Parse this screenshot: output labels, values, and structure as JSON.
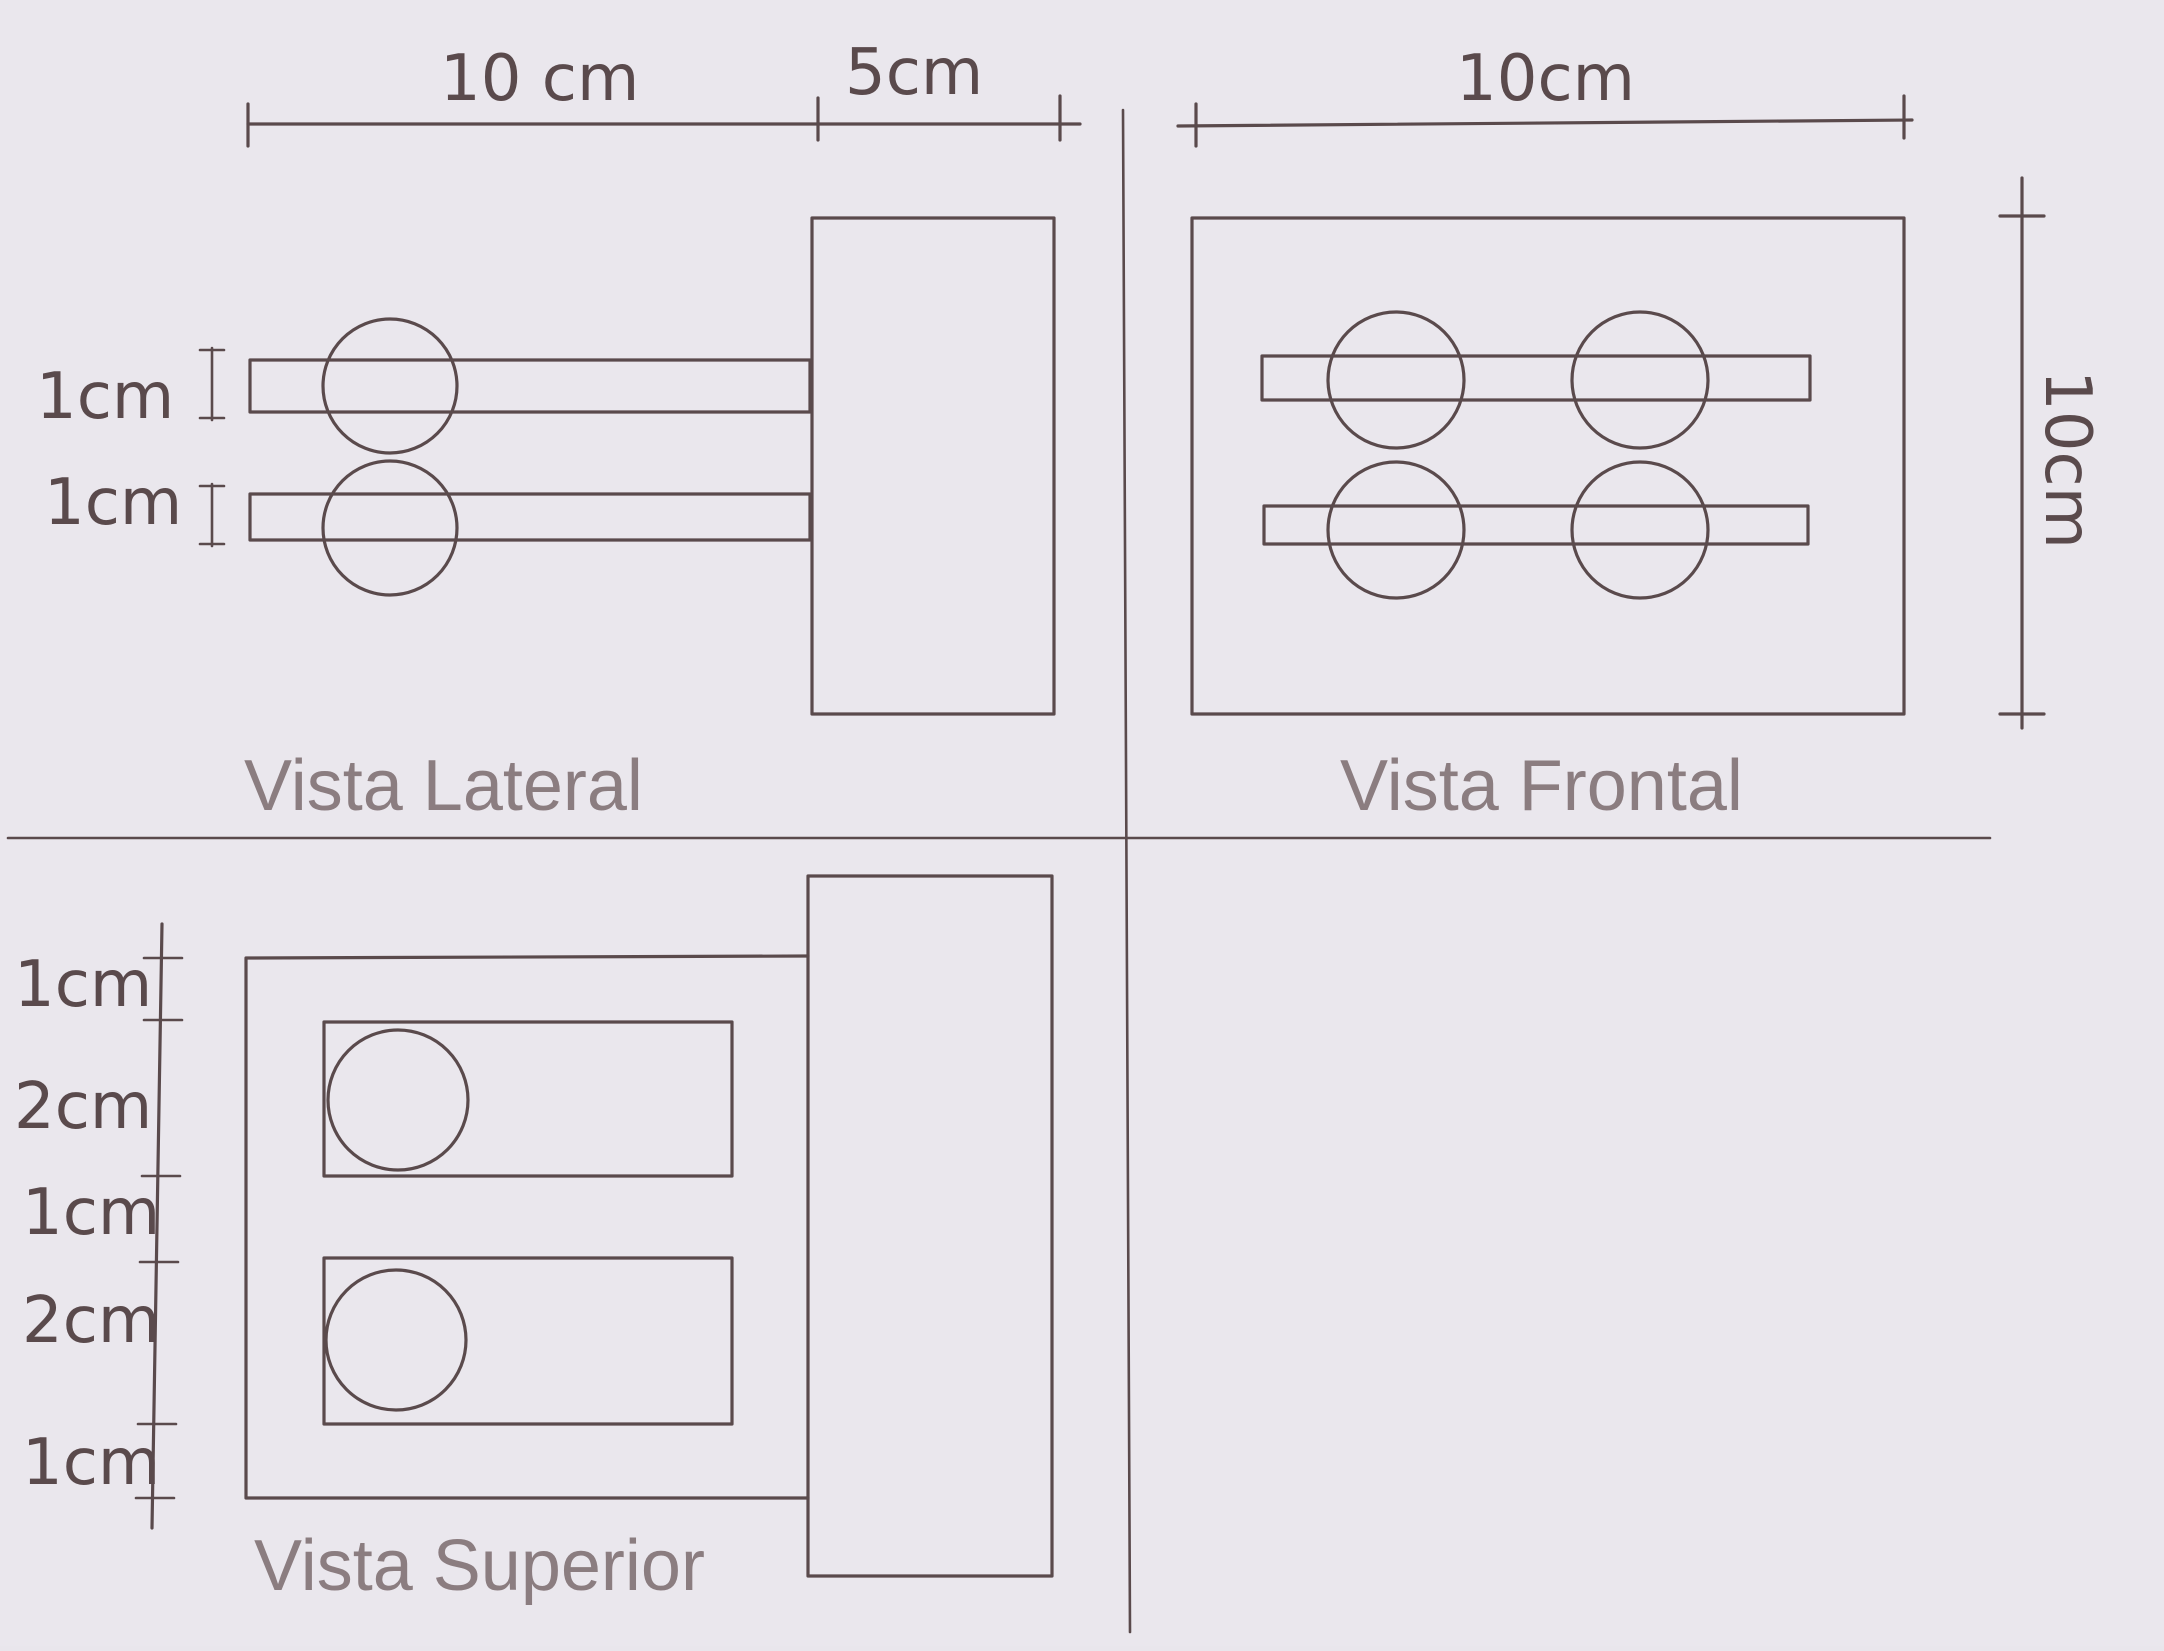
{
  "views": {
    "lateral": {
      "title": "Vista Lateral"
    },
    "frontal": {
      "title": "Vista Frontal"
    },
    "superior": {
      "title": "Vista Superior"
    }
  },
  "dimensions": {
    "lateral_top_left": "10 cm",
    "lateral_top_right": "5cm",
    "lateral_bar_1": "1cm",
    "lateral_bar_2": "1cm",
    "frontal_top": "10cm",
    "frontal_right": "10cm",
    "superior_1": "1cm",
    "superior_2": "2cm",
    "superior_3": "1cm",
    "superior_4": "2cm",
    "superior_5": "1cm"
  },
  "colors": {
    "paper": "#eae7ed",
    "ink": "#5a4a4c",
    "title": "#8b7d80"
  }
}
